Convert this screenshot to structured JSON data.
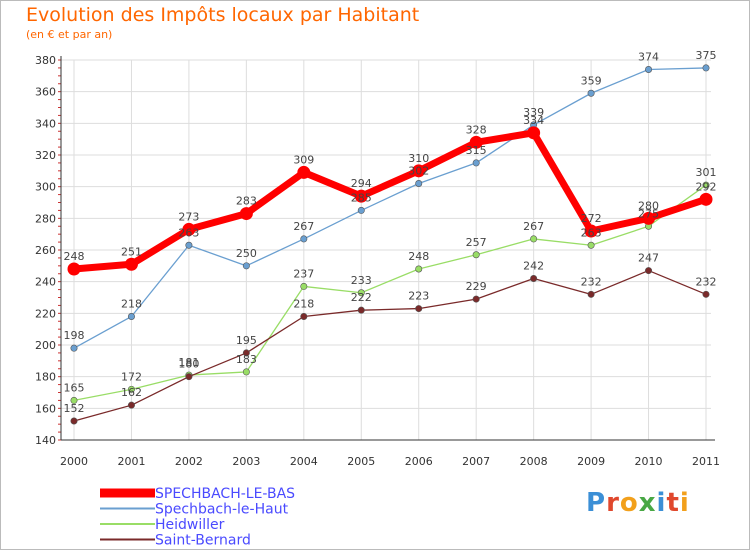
{
  "title": "Evolution des Impôts locaux par Habitant",
  "subtitle": "(en € et par an)",
  "logo": {
    "text": "Proxiti",
    "colors": [
      "#3b8fd6",
      "#e0482d",
      "#f2a01c",
      "#49a845",
      "#3b8fd6",
      "#e0482d",
      "#f2a01c"
    ]
  },
  "chart_data": {
    "type": "line",
    "title": "Evolution des Impôts locaux par Habitant",
    "subtitle": "(en € et par an)",
    "xlabel": "",
    "ylabel": "",
    "ylim": [
      140,
      380
    ],
    "yticks": [
      140,
      160,
      180,
      200,
      220,
      240,
      260,
      280,
      300,
      320,
      340,
      360,
      380
    ],
    "categories": [
      "2000",
      "2001",
      "2002",
      "2003",
      "2004",
      "2005",
      "2006",
      "2007",
      "2008",
      "2009",
      "2010",
      "2011"
    ],
    "grid": true,
    "legend_position": "bottom-left",
    "series": [
      {
        "name": "SPECHBACH-LE-BAS",
        "color": "#ff0000",
        "emphasis": "thick",
        "values": [
          248,
          251,
          273,
          283,
          309,
          294,
          310,
          328,
          334,
          272,
          280,
          292
        ],
        "labels": [
          "248",
          "251",
          "273",
          "283",
          "309",
          "294",
          "310",
          "328",
          "334",
          "272",
          "280",
          "292"
        ]
      },
      {
        "name": "Spechbach-le-Haut",
        "color": "#6a9fd0",
        "values": [
          198,
          218,
          263,
          250,
          267,
          285,
          302,
          315,
          339,
          359,
          374,
          375
        ],
        "labels": [
          "198",
          "218",
          "263",
          "250",
          "267",
          "285",
          "302",
          "315",
          "339",
          "359",
          "374",
          "375"
        ]
      },
      {
        "name": "Heidwiller",
        "color": "#99dd66",
        "values": [
          165,
          172,
          181,
          183,
          237,
          233,
          248,
          257,
          267,
          263,
          275,
          301
        ],
        "labels": [
          "165",
          "172",
          "181",
          "183",
          "237",
          "233",
          "248",
          "257",
          "267",
          "263",
          "275",
          "301"
        ]
      },
      {
        "name": "Saint-Bernard",
        "color": "#7a2a2a",
        "values": [
          152,
          162,
          180,
          195,
          218,
          222,
          223,
          229,
          242,
          232,
          247,
          232
        ],
        "labels": [
          "152",
          "162",
          "180",
          "195",
          "218",
          "222",
          "223",
          "229",
          "242",
          "232",
          "247",
          "232"
        ]
      }
    ]
  }
}
